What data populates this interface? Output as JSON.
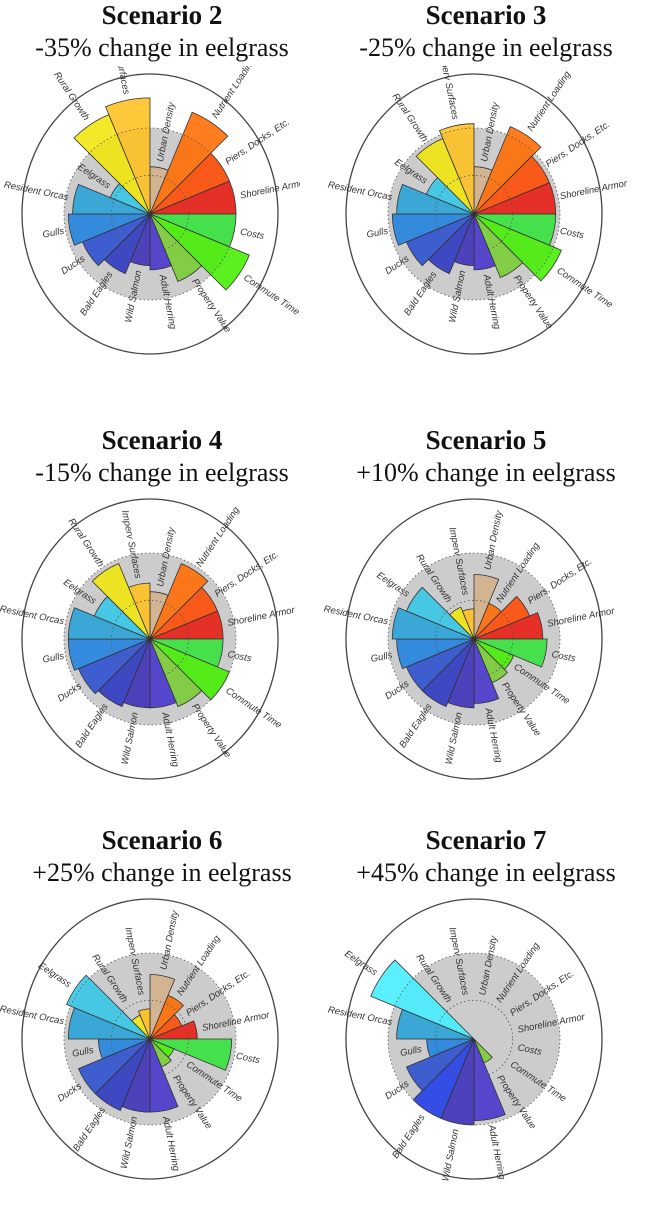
{
  "chart_data": [
    {
      "type": "polar-bar",
      "title": "Scenario 2",
      "subtitle": "-35% change in eelgrass",
      "categories": [
        "Urban Density",
        "Nutrient Loading",
        "Piers, Docks, Etc.",
        "Shoreline Armor",
        "Costs",
        "Commute Time",
        "Property Value",
        "Adult Herring",
        "Wild Salmon",
        "Bald Eagles",
        "Ducks",
        "Gulls",
        "Resident Orcas",
        "Eelgrass",
        "Rural Growth",
        "Imperv Surfaces"
      ],
      "values": [
        0.55,
        1.28,
        1.0,
        1.0,
        1.0,
        1.25,
        0.85,
        0.65,
        0.6,
        0.75,
        0.85,
        0.95,
        0.9,
        0.5,
        1.25,
        1.35
      ]
    },
    {
      "type": "polar-bar",
      "title": "Scenario 3",
      "subtitle": "-25% change in eelgrass",
      "categories": [
        "Urban Density",
        "Nutrient Loading",
        "Piers, Docks, Etc.",
        "Shoreline Armor",
        "Costs",
        "Commute Time",
        "Property Value",
        "Adult Herring",
        "Wild Salmon",
        "Bald Eagles",
        "Ducks",
        "Gulls",
        "Resident Orcas",
        "Eelgrass",
        "Rural Growth",
        "Imperv Surfaces"
      ],
      "values": [
        0.55,
        1.1,
        0.95,
        0.95,
        0.95,
        1.1,
        0.8,
        0.65,
        0.6,
        0.75,
        0.85,
        0.95,
        0.9,
        0.6,
        0.95,
        1.05
      ]
    },
    {
      "type": "polar-bar",
      "title": "Scenario 4",
      "subtitle": "-15% change in eelgrass",
      "categories": [
        "Urban Density",
        "Nutrient Loading",
        "Piers, Docks, Etc.",
        "Shoreline Armor",
        "Costs",
        "Commute Time",
        "Property Value",
        "Adult Herring",
        "Wild Salmon",
        "Bald Eagles",
        "Ducks",
        "Gulls",
        "Resident Orcas",
        "Eelgrass",
        "Rural Growth",
        "Imperv Surfaces"
      ],
      "values": [
        0.55,
        0.95,
        0.85,
        0.85,
        0.85,
        1.0,
        0.85,
        0.8,
        0.8,
        0.85,
        0.9,
        0.95,
        0.95,
        0.7,
        0.95,
        0.65
      ]
    },
    {
      "type": "polar-bar",
      "title": "Scenario 5",
      "subtitle": "+10% change in eelgrass",
      "categories": [
        "Urban Density",
        "Nutrient Loading",
        "Piers, Docks, Etc.",
        "Shoreline Armor",
        "Costs",
        "Commute Time",
        "Property Value",
        "Adult Herring",
        "Wild Salmon",
        "Bald Eagles",
        "Ducks",
        "Gulls",
        "Resident Orcas",
        "Eelgrass",
        "Rural Growth",
        "Imperv Surfaces"
      ],
      "values": [
        0.75,
        0.45,
        0.7,
        0.8,
        0.85,
        0.5,
        0.55,
        0.75,
        0.8,
        0.85,
        0.85,
        0.9,
        0.95,
        0.85,
        0.4,
        0.35
      ]
    },
    {
      "type": "polar-bar",
      "title": "Scenario 6",
      "subtitle": "+25% change in eelgrass",
      "categories": [
        "Urban Density",
        "Nutrient Loading",
        "Piers, Docks, Etc.",
        "Shoreline Armor",
        "Costs",
        "Commute Time",
        "Property Value",
        "Adult Herring",
        "Wild Salmon",
        "Bald Eagles",
        "Ducks",
        "Gulls",
        "Resident Orcas",
        "Eelgrass",
        "Rural Growth",
        "Imperv Surfaces"
      ],
      "values": [
        0.75,
        0.55,
        0.4,
        0.55,
        0.95,
        0.3,
        0.35,
        0.85,
        0.85,
        0.9,
        0.9,
        0.6,
        0.95,
        1.05,
        0.3,
        0.35
      ]
    },
    {
      "type": "polar-bar",
      "title": "Scenario 7",
      "subtitle": "+45% change in eelgrass",
      "categories": [
        "Urban Density",
        "Nutrient Loading",
        "Piers, Docks, Etc.",
        "Shoreline Armor",
        "Costs",
        "Commute Time",
        "Property Value",
        "Adult Herring",
        "Wild Salmon",
        "Bald Eagles",
        "Ducks",
        "Gulls",
        "Resident Orcas",
        "Eelgrass",
        "Rural Growth",
        "Imperv Surfaces"
      ],
      "values": [
        0,
        0,
        0,
        0,
        0,
        0,
        0.3,
        0.95,
        1.0,
        1.0,
        0.85,
        0.55,
        0.9,
        1.3,
        0,
        0
      ]
    }
  ],
  "colors": [
    "#d4b08a",
    "#ff6a00",
    "#ff4a00",
    "#e81a10",
    "#33e33a",
    "#44ee00",
    "#77cc33",
    "#4433cc",
    "#3b2fb8",
    "#2a35c0",
    "#2a4fd0",
    "#1f82e0",
    "#26a2d8",
    "#33c6e6",
    "#f2e60a",
    "#ffc020"
  ],
  "colors_scenario7": {
    "Eelgrass": "#44eeff",
    "Bald Eagles": "#1f3ce8"
  },
  "background_color": "#cccccc"
}
